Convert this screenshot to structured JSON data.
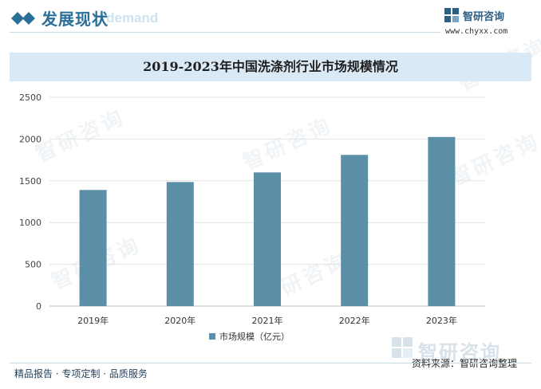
{
  "header": {
    "section_title": "发展现状",
    "ghost_text": "d demand",
    "logo_name": "智研咨询",
    "logo_url": "www.chyxx.com"
  },
  "watermark_text": "智研咨询",
  "chart_data": {
    "type": "bar",
    "title": "2019-2023年中国洗涤剂行业市场规模情况",
    "categories": [
      "2019年",
      "2020年",
      "2021年",
      "2022年",
      "2023年"
    ],
    "series": [
      {
        "name": "市场规模（亿元）",
        "values": [
          1390,
          1485,
          1600,
          1810,
          2025
        ]
      }
    ],
    "ylim": [
      0,
      2500
    ],
    "yticks": [
      "0",
      "500",
      "1000",
      "1500",
      "2000",
      "2500"
    ],
    "ytick_values": [
      0,
      500,
      1000,
      1500,
      2000,
      2500
    ],
    "xlabel": "",
    "ylabel": "",
    "grid": true,
    "legend": "bottom-center",
    "bar_color": "#5b8fa8"
  },
  "footer": {
    "services": "精品报告 · 专项定制 · 品质服务",
    "source": "资料来源：智研咨询整理",
    "brand_logo": "智研咨询"
  }
}
